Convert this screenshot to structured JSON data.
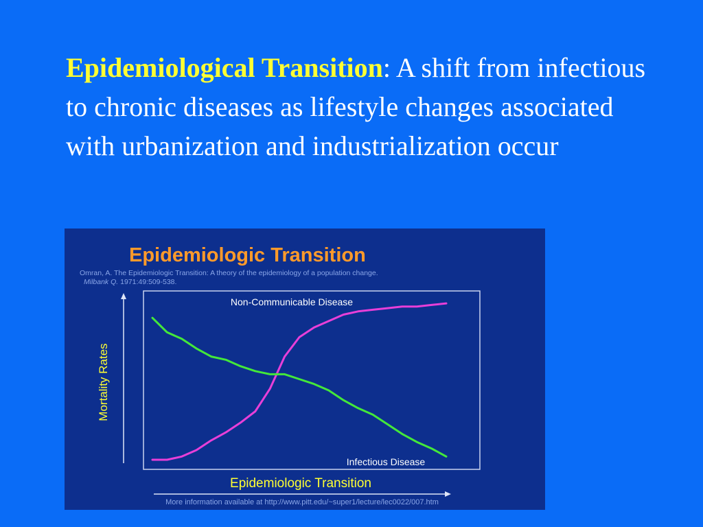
{
  "slide": {
    "term": "Epidemiological Transition",
    "separator": ":",
    "definition": " A shift from infectious to chronic diseases as lifestyle changes associated with urbanization and industrialization occur"
  },
  "figure": {
    "title": "Epidemiologic Transition",
    "citation_line1": "Omran, A.  The Epidemiologic Transition: A theory of the epidemiology of a population change.",
    "citation_journal": "Milbank Q.",
    "citation_details": " 1971:49:509-538.",
    "footer": "More information available at http://www.pitt.edu/~super1/lecture/lec0022/007.htm"
  },
  "chart_data": {
    "type": "line",
    "title": "Epidemiologic Transition",
    "xlabel": "Epidemiologic Transition",
    "ylabel": "Mortality Rates",
    "x": [
      0,
      5,
      10,
      15,
      20,
      25,
      30,
      35,
      40,
      45,
      50,
      55,
      60,
      65,
      70,
      75,
      80,
      85,
      90,
      95,
      100
    ],
    "xlim": [
      0,
      100
    ],
    "ylim": [
      0,
      100
    ],
    "grid": false,
    "series": [
      {
        "name": "Non-Communicable Disease",
        "color": "#e83fd8",
        "values": [
          0,
          0,
          2,
          6,
          12,
          17,
          23,
          30,
          44,
          64,
          76,
          82,
          86,
          90,
          92,
          93,
          94,
          95,
          95,
          96,
          97
        ]
      },
      {
        "name": "Infectious Disease",
        "color": "#44e83a",
        "values": [
          88,
          79,
          75,
          69,
          64,
          62,
          58,
          55,
          53,
          53,
          50,
          47,
          43,
          37,
          32,
          28,
          22,
          16,
          11,
          7,
          2
        ]
      }
    ],
    "annotations": {
      "top_label": "Non-Communicable Disease",
      "bottom_label": "Infectious Disease"
    }
  },
  "colors": {
    "slide_background": "#0a6cf7",
    "slide_text": "#ffffff",
    "term_text": "#ffff33",
    "figure_background": "#0d2f8e",
    "figure_title": "#ff9a2a",
    "axis_label": "#ffff33",
    "faint_text": "#8aa6e8"
  }
}
